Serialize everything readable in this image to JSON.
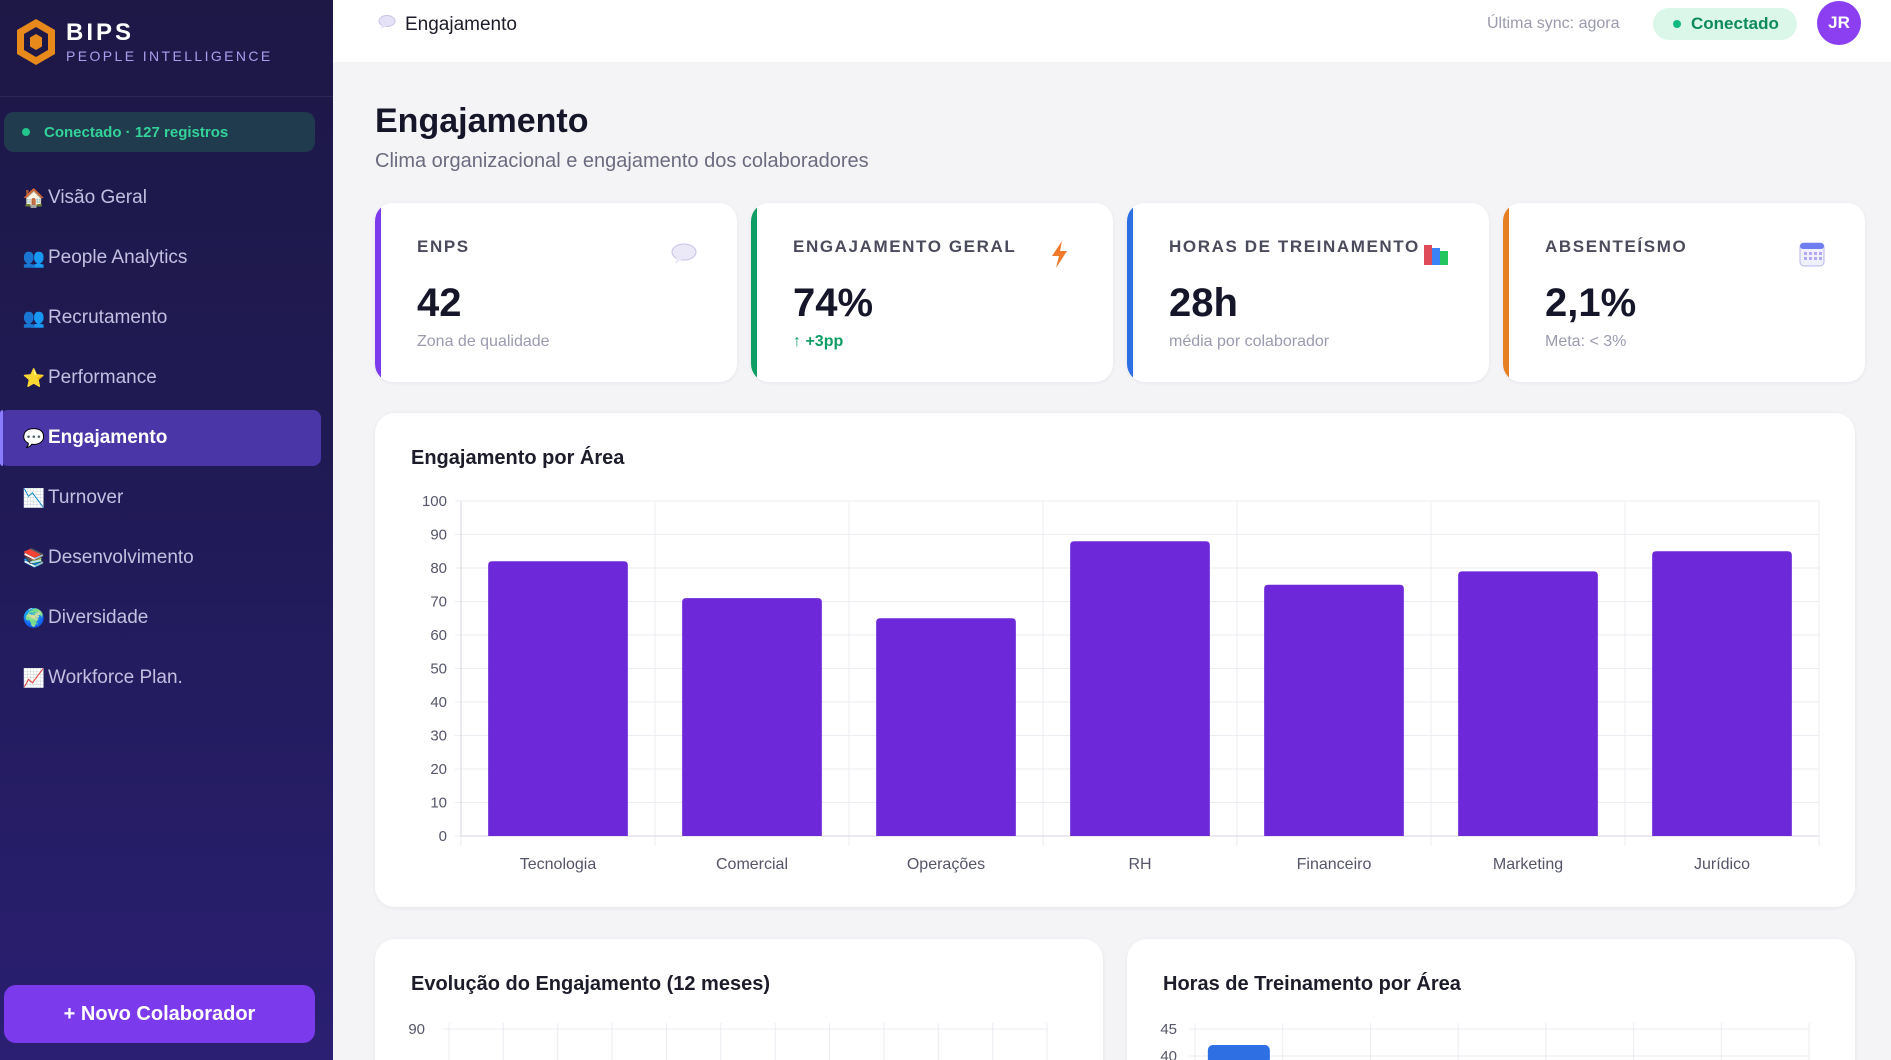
{
  "brand": {
    "name": "BIPS",
    "subtitle": "PEOPLE INTELLIGENCE"
  },
  "sidebar": {
    "connection": "Conectado · 127 registros",
    "items": [
      {
        "label": "Visão Geral",
        "icon": "house-icon",
        "glyph": "🏠"
      },
      {
        "label": "People Analytics",
        "icon": "people-icon",
        "glyph": "👥"
      },
      {
        "label": "Recrutamento",
        "icon": "people-icon",
        "glyph": "👥"
      },
      {
        "label": "Performance",
        "icon": "star-icon",
        "glyph": "⭐"
      },
      {
        "label": "Engajamento",
        "icon": "speech-bubble-icon",
        "glyph": "💬",
        "active": true
      },
      {
        "label": "Turnover",
        "icon": "chart-down-icon",
        "glyph": "📉"
      },
      {
        "label": "Desenvolvimento",
        "icon": "books-icon",
        "glyph": "📚"
      },
      {
        "label": "Diversidade",
        "icon": "globe-icon",
        "glyph": "🌍"
      },
      {
        "label": "Workforce Plan.",
        "icon": "chart-up-icon",
        "glyph": "📈"
      }
    ],
    "new_button": "+ Novo Colaborador"
  },
  "topbar": {
    "title": "Engajamento",
    "sync": "Última sync: agora",
    "status": "Conectado",
    "avatar": "JR"
  },
  "page": {
    "title": "Engajamento",
    "subtitle": "Clima organizacional e engajamento dos colaboradores"
  },
  "kpis": [
    {
      "label": "ENPS",
      "value": "42",
      "note": "Zona de qualidade",
      "color": "#7c3aed",
      "icon": "speech-bubble-icon"
    },
    {
      "label": "ENGAJAMENTO GERAL",
      "value": "74%",
      "note": "↑ +3pp",
      "note_positive": true,
      "color": "#0f9d65",
      "icon": "lightning-icon"
    },
    {
      "label": "HORAS DE TREINAMENTO",
      "value": "28h",
      "note": "média por colaborador",
      "color": "#2f6fe4",
      "icon": "books-icon"
    },
    {
      "label": "ABSENTEÍSMO",
      "value": "2,1%",
      "note": "Meta: < 3%",
      "color": "#e67e22",
      "icon": "calendar-icon"
    }
  ],
  "charts": {
    "area_title": "Engajamento por Área",
    "evolution_title": "Evolução do Engajamento (12 meses)",
    "training_title": "Horas de Treinamento por Área"
  },
  "chart_data": [
    {
      "type": "bar",
      "title": "Engajamento por Área",
      "categories": [
        "Tecnologia",
        "Comercial",
        "Operações",
        "RH",
        "Financeiro",
        "Marketing",
        "Jurídico"
      ],
      "values": [
        82,
        71,
        65,
        88,
        75,
        79,
        85
      ],
      "ylim": [
        0,
        100
      ],
      "yticks": [
        0,
        10,
        20,
        30,
        40,
        50,
        60,
        70,
        80,
        90,
        100
      ],
      "color": "#6d28d9",
      "grid": true
    },
    {
      "type": "line",
      "title": "Evolução do Engajamento (12 meses)",
      "yticks_visible": [
        90
      ]
    },
    {
      "type": "bar",
      "title": "Horas de Treinamento por Área",
      "yticks_visible": [
        45,
        40
      ],
      "color": "#2f6fe4"
    }
  ]
}
